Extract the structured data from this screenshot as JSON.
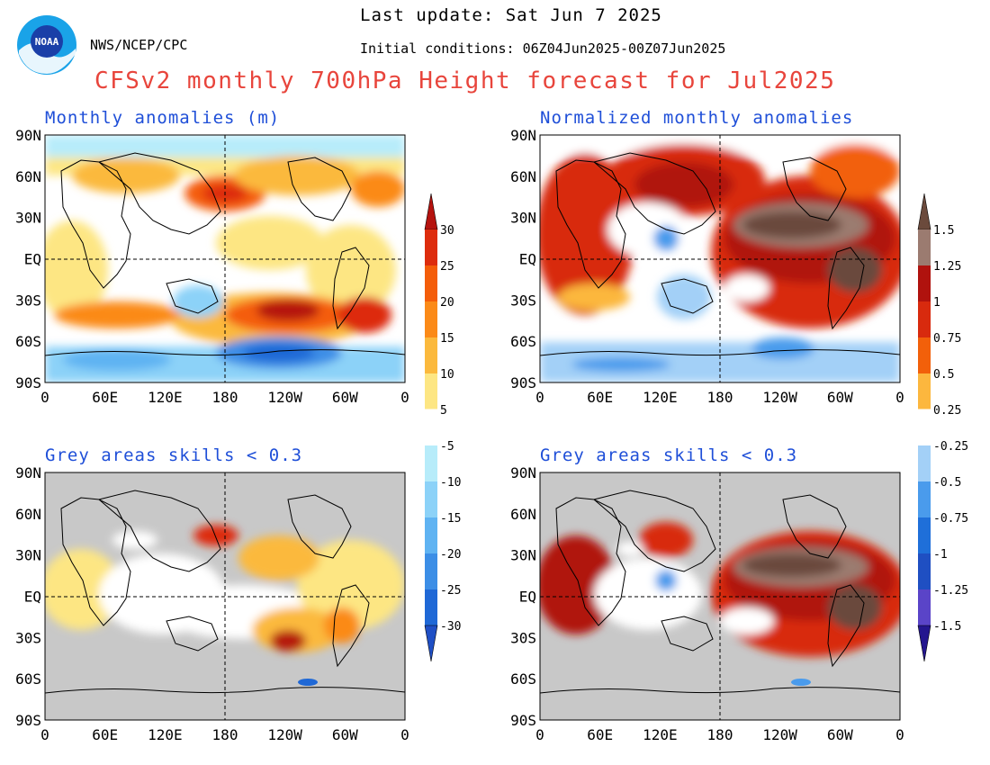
{
  "header": {
    "last_update": "Last update: Sat Jun 7 2025",
    "source": "NWS/NCEP/CPC",
    "initial_conditions": "Initial conditions: 06Z04Jun2025-00Z07Jun2025",
    "title": "CFSv2 monthly 700hPa Height forecast for Jul2025",
    "logo_text": "NOAA"
  },
  "chart_data": [
    {
      "type": "heatmap",
      "panel": "top-left",
      "title": "Monthly anomalies (m)",
      "units": "m",
      "xlabels": [
        "0",
        "60E",
        "120E",
        "180",
        "120W",
        "60W",
        "0"
      ],
      "ylabels": [
        "90N",
        "60N",
        "30N",
        "EQ",
        "30S",
        "60S",
        "90S"
      ],
      "grey_mask": false,
      "colorbar": "anomaly_m",
      "features": [
        {
          "level": 15,
          "region": "North Pacific near 180, 45N"
        },
        {
          "level": 25,
          "region": "South Pacific 120W-150W, 40S"
        },
        {
          "level": 20,
          "region": "South Atlantic 40W, 40S"
        },
        {
          "level": -20,
          "region": "Antarctic coast 100W-140W"
        },
        {
          "level": -10,
          "region": "south of Australia 140E, 35S"
        },
        {
          "level": 10,
          "region": "North Atlantic / Europe 45N"
        },
        {
          "level": 5,
          "region": "Arctic Canada / Greenland"
        }
      ]
    },
    {
      "type": "heatmap",
      "panel": "top-right",
      "title": "Normalized monthly anomalies",
      "xlabels": [
        "0",
        "60E",
        "120E",
        "180",
        "120W",
        "60W",
        "0"
      ],
      "ylabels": [
        "90N",
        "60N",
        "30N",
        "EQ",
        "30S",
        "60S",
        "90S"
      ],
      "grey_mask": false,
      "colorbar": "normalized",
      "features": [
        {
          "level": 1.5,
          "region": "tropical eastern Pacific / Americas 30N-30S"
        },
        {
          "level": 1.0,
          "region": "North Pacific 40N"
        },
        {
          "level": 0.75,
          "region": "tropical Atlantic / Africa"
        },
        {
          "level": -0.75,
          "region": "Southern Ocean 60S"
        },
        {
          "level": -0.5,
          "region": "Australia / western Pacific"
        }
      ]
    },
    {
      "type": "heatmap",
      "panel": "bottom-left",
      "title": "Grey areas skills < 0.3",
      "units": "m",
      "xlabels": [
        "0",
        "60E",
        "120E",
        "180",
        "120W",
        "60W",
        "0"
      ],
      "ylabels": [
        "90N",
        "60N",
        "30N",
        "EQ",
        "30S",
        "60S",
        "90S"
      ],
      "grey_mask": true,
      "colorbar": "anomaly_m",
      "features": [
        {
          "level": 20,
          "region": "North Pacific 180, 45N"
        },
        {
          "level": 25,
          "region": "South Pacific 120W, 40S"
        },
        {
          "level": 10,
          "region": "tropical Atlantic / Americas"
        }
      ]
    },
    {
      "type": "heatmap",
      "panel": "bottom-right",
      "title": "Grey areas skills < 0.3",
      "xlabels": [
        "0",
        "60E",
        "120E",
        "180",
        "120W",
        "60W",
        "0"
      ],
      "ylabels": [
        "90N",
        "60N",
        "30N",
        "EQ",
        "30S",
        "60S",
        "90S"
      ],
      "grey_mask": true,
      "colorbar": "normalized",
      "features": [
        {
          "level": 1.5,
          "region": "eastern Pacific / Americas 15N-30S"
        },
        {
          "level": 1.0,
          "region": "tropical Atlantic / Africa"
        },
        {
          "level": -0.75,
          "region": "South Pacific 120W, 60S"
        }
      ]
    }
  ],
  "colorbars": {
    "anomaly_m": {
      "labels": [
        "30",
        "25",
        "20",
        "15",
        "10",
        "5",
        "-5",
        "-10",
        "-15",
        "-20",
        "-25",
        "-30"
      ],
      "colors": [
        "#b5130f",
        "#dd2c0d",
        "#f45d09",
        "#fb8a18",
        "#fbb93d",
        "#fde683",
        "#ffffff",
        "#b7ecfa",
        "#8cd2f8",
        "#5fb3f2",
        "#3c8ee6",
        "#1f68d6",
        "#1f4fc5"
      ]
    },
    "normalized": {
      "labels": [
        "1.5",
        "1.25",
        "1",
        "0.75",
        "0.5",
        "0.25",
        "-0.25",
        "-0.5",
        "-0.75",
        "-1",
        "-1.25",
        "-1.5"
      ],
      "colors": [
        "#6b4a3c",
        "#9b7b70",
        "#b0120e",
        "#d82a0e",
        "#f2600a",
        "#fcb73e",
        "#ffffff",
        "#a3d0f7",
        "#4a9bec",
        "#1f6fd9",
        "#1f4fc2",
        "#5a44c8",
        "#24168f"
      ]
    },
    "grey": "#c8c8c8"
  }
}
